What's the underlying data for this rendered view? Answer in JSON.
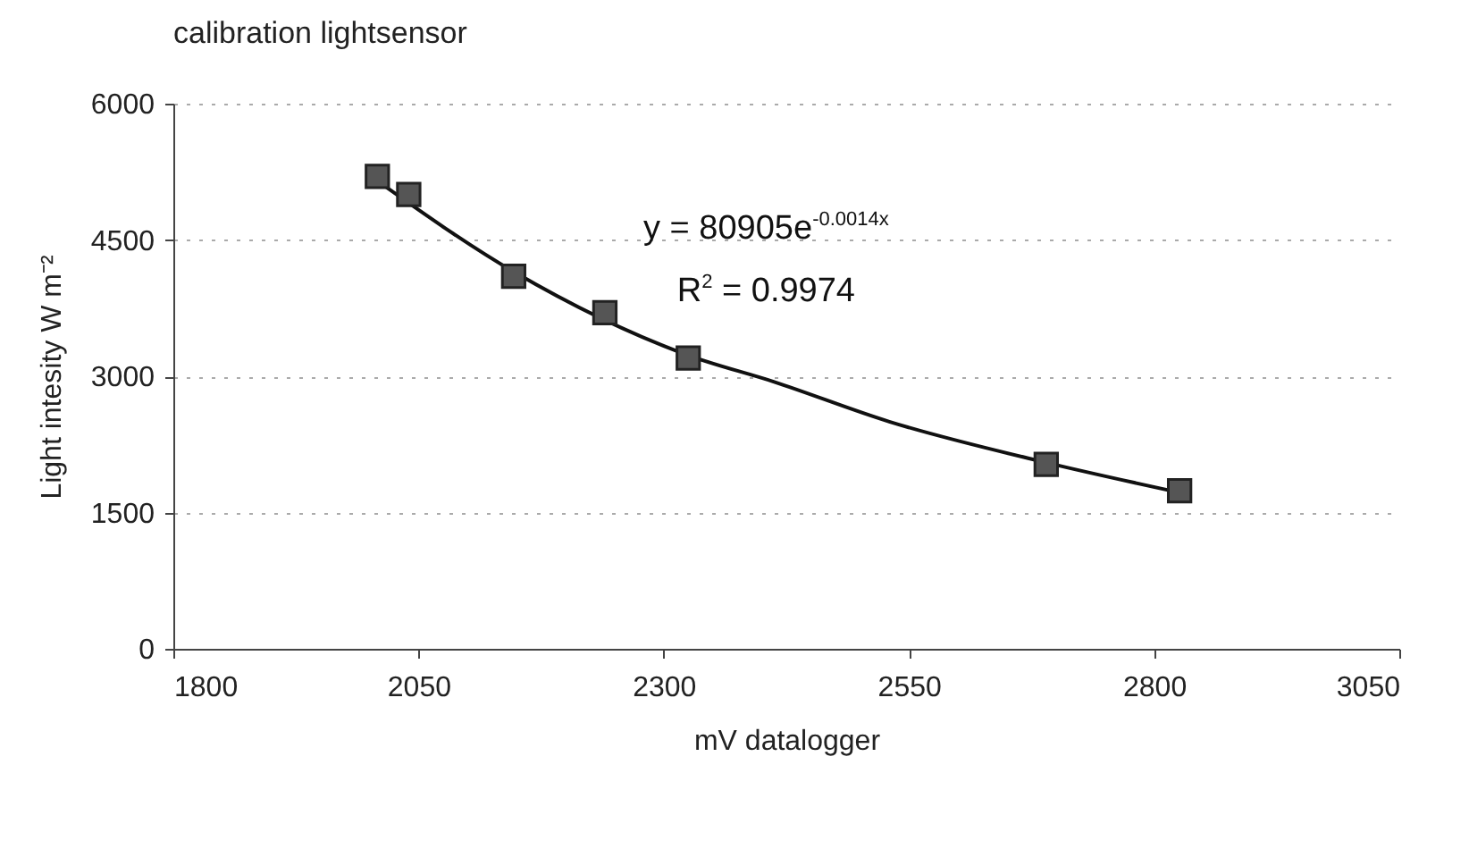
{
  "chart_data": {
    "type": "scatter",
    "title": "calibration lightsensor",
    "xlabel": "mV datalogger",
    "ylabel": "Light intesity W m⁻²",
    "xlim": [
      1800,
      3050
    ],
    "xticks": [
      1800,
      2050,
      2300,
      2550,
      2800,
      3050
    ],
    "ylim": [
      0,
      6000
    ],
    "yticks": [
      0,
      1500,
      3000,
      4500,
      6000
    ],
    "grid": "y",
    "series": [
      {
        "marker": "square",
        "color": "#555555",
        "x": [
          2008,
          2040,
          2147,
          2240,
          2325,
          2690,
          2826
        ],
        "values": [
          5200,
          5000,
          4100,
          3700,
          3200,
          2030,
          1740
        ]
      },
      {
        "type": "line",
        "marker": "none",
        "color": "#111111",
        "line_style": "solid",
        "x": [
          2008,
          2147,
          2325,
          2412,
          2530,
          2690,
          2826
        ],
        "values": [
          5150,
          4150,
          3230,
          2940,
          2500,
          2050,
          1720
        ]
      }
    ],
    "annotations": [
      "y = 80905e$^{-0.0014x}$",
      "R$^{2}$ = 0.9974"
    ]
  }
}
